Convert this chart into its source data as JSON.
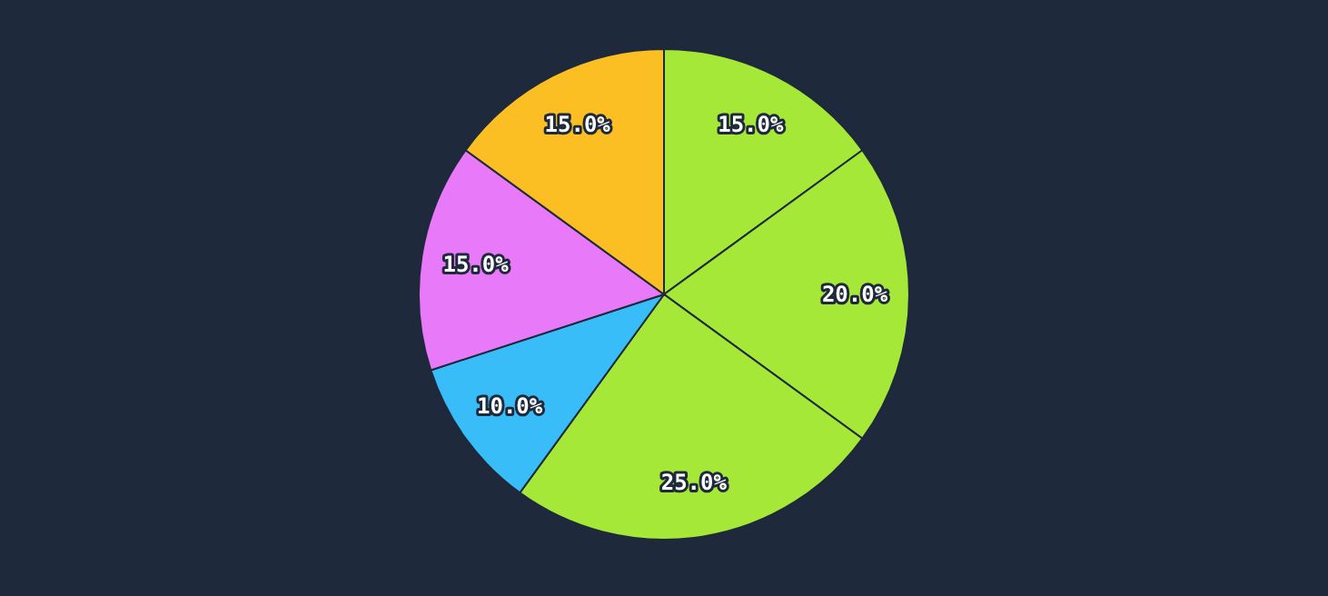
{
  "chart_data": {
    "type": "pie",
    "categories": [
      null,
      null,
      null,
      null,
      null,
      null
    ],
    "values": [
      15,
      20,
      25,
      10,
      15,
      15
    ],
    "colors": [
      "#a6e838",
      "#a6e838",
      "#a6e838",
      "#38bdf8",
      "#e879f9",
      "#fbbf24"
    ],
    "value_labels": [
      "15.0%",
      "20.0%",
      "25.0%",
      "10.0%",
      "15.0%",
      "15.0%"
    ],
    "legend": false
  }
}
